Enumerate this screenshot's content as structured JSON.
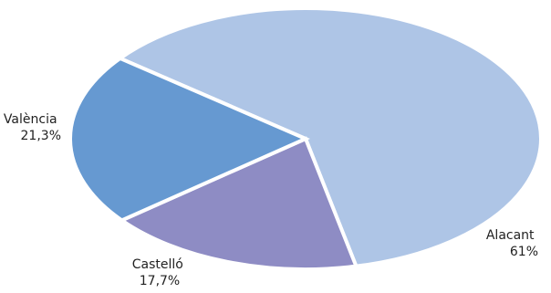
{
  "chart_data": {
    "type": "pie",
    "title": "",
    "legend": "none",
    "slices": [
      {
        "label": "Alacant",
        "value": 61,
        "value_label": "61%",
        "color": "#aec5e6"
      },
      {
        "label": "Castelló",
        "value": 17.7,
        "value_label": "17,7%",
        "color": "#8e8cc4"
      },
      {
        "label": "València",
        "value": 21.3,
        "value_label": "21,3%",
        "color": "#6699d1"
      }
    ]
  }
}
